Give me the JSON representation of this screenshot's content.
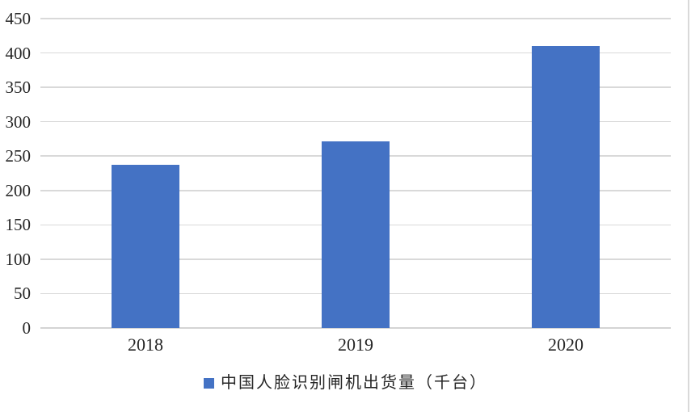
{
  "chart_data": {
    "type": "bar",
    "categories": [
      "2018",
      "2019",
      "2020"
    ],
    "values": [
      237,
      272,
      410
    ],
    "series_name": "中国人脸识别闸机出货量（千台）",
    "legend": "中国人脸识别闸机出货量（千台）",
    "title": "",
    "xlabel": "",
    "ylabel": "",
    "ylim": [
      0,
      450
    ],
    "ytick_step": 50,
    "yticks": [
      0,
      50,
      100,
      150,
      200,
      250,
      300,
      350,
      400,
      450
    ],
    "grid": "horizontal",
    "legend_position": "bottom-center",
    "bar_color": "#4472c4",
    "gridline_color": "#d9d9d9",
    "axis_line_color": "#d4d4d4",
    "text_color": "#262626"
  }
}
